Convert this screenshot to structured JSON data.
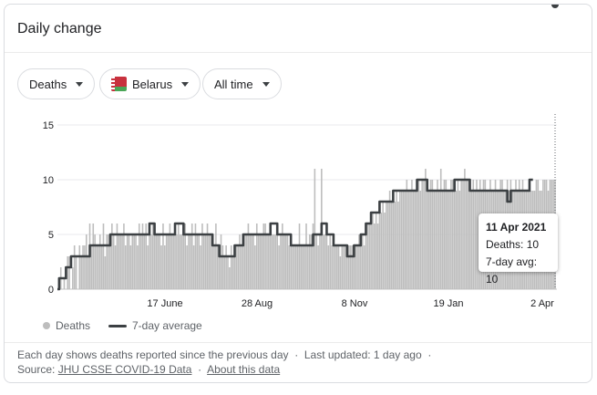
{
  "card": {
    "title": "Daily change"
  },
  "filters": {
    "metric": "Deaths",
    "country": "Belarus",
    "range": "All time",
    "flag_colors": {
      "red": "#c8313e",
      "green": "#4aa657"
    }
  },
  "legend": {
    "bars_label": "Deaths",
    "line_label": "7-day average"
  },
  "tooltip": {
    "date": "11 Apr 2021",
    "deaths_line": "Deaths: 10",
    "avg_line": "7-day avg: 10"
  },
  "footer": {
    "note": "Each day shows deaths reported since the previous day",
    "sep": "·",
    "updated": "Last updated: 1 day ago",
    "source_label": "Source:",
    "source_link": "JHU CSSE COVID-19 Data",
    "about_link": "About this data"
  },
  "colors": {
    "bar": "#bdbdbd",
    "line": "#3c4043",
    "grid": "#e8eaed",
    "text": "#202124",
    "muted": "#5f6368"
  },
  "chart_data": {
    "type": "bar",
    "x_ticks": [
      "17 June",
      "28 Aug",
      "8 Nov",
      "19 Jan",
      "2 Apr"
    ],
    "y_ticks": [
      "0",
      "5",
      "10",
      "15"
    ],
    "ylim": [
      0,
      16
    ],
    "grid": true,
    "legend_position": "bottom-left",
    "series": [
      {
        "name": "Deaths",
        "type": "bar",
        "values": [
          0,
          1,
          2,
          0,
          1,
          0,
          3,
          3,
          0,
          2,
          4,
          3,
          0,
          4,
          3,
          4,
          4,
          5,
          3,
          6,
          4,
          6,
          5,
          4,
          4,
          5,
          4,
          6,
          3,
          5,
          5,
          5,
          6,
          5,
          4,
          6,
          5,
          5,
          5,
          6,
          4,
          5,
          5,
          4,
          5,
          5,
          5,
          4,
          6,
          5,
          6,
          5,
          6,
          4,
          5,
          5,
          6,
          6,
          5,
          5,
          5,
          4,
          6,
          4,
          5,
          5,
          6,
          5,
          5,
          6,
          5,
          6,
          5,
          5,
          5,
          6,
          4,
          5,
          5,
          6,
          4,
          6,
          5,
          5,
          4,
          6,
          5,
          5,
          6,
          5,
          5,
          4,
          4,
          6,
          4,
          4,
          5,
          4,
          3,
          4,
          3,
          2,
          4,
          3,
          3,
          4,
          4,
          5,
          4,
          5,
          5,
          5,
          6,
          5,
          5,
          5,
          4,
          6,
          5,
          5,
          5,
          6,
          6,
          5,
          5,
          5,
          5,
          5,
          5,
          6,
          4,
          5,
          6,
          5,
          5,
          5,
          4,
          5,
          4,
          4,
          4,
          4,
          6,
          4,
          4,
          4,
          6,
          4,
          5,
          5,
          6,
          11,
          5,
          4,
          5,
          11,
          5,
          5,
          6,
          4,
          5,
          4,
          4,
          4,
          4,
          4,
          3,
          4,
          4,
          4,
          3,
          4,
          4,
          4,
          3,
          4,
          4,
          5,
          5,
          5,
          4,
          5,
          6,
          6,
          6,
          7,
          6,
          7,
          6,
          7,
          7,
          8,
          7,
          8,
          8,
          9,
          8,
          9,
          8,
          9,
          8,
          9,
          9,
          9,
          9,
          10,
          9,
          9,
          10,
          9,
          9,
          10,
          10,
          9,
          10,
          10,
          11,
          9,
          9,
          10,
          10,
          9,
          9,
          10,
          9,
          11,
          9,
          10,
          10,
          9,
          9,
          10,
          10,
          9,
          9,
          10,
          9,
          10,
          10,
          11,
          10,
          10,
          10,
          9,
          10,
          9,
          10,
          9,
          10,
          9,
          10,
          10,
          9,
          9,
          10,
          9,
          9,
          10,
          9,
          9,
          10,
          10,
          9,
          9,
          10,
          9,
          10,
          9,
          9,
          10,
          9,
          10,
          9,
          10,
          9,
          9,
          9,
          10,
          9,
          9,
          9,
          10,
          10,
          9,
          9,
          10,
          10,
          10,
          9,
          10,
          10,
          10,
          10
        ]
      },
      {
        "name": "7-day average",
        "type": "line",
        "values": [
          0,
          1,
          1,
          1,
          1,
          2,
          2,
          2,
          3,
          3,
          3,
          3,
          3,
          3,
          3,
          3,
          3,
          3,
          3,
          4,
          4,
          4,
          4,
          4,
          4,
          4,
          4,
          4,
          4,
          4,
          4,
          5,
          5,
          5,
          5,
          5,
          5,
          5,
          5,
          5,
          5,
          5,
          5,
          5,
          5,
          5,
          5,
          5,
          5,
          5,
          5,
          5,
          5,
          5,
          6,
          6,
          6,
          5,
          5,
          5,
          5,
          5,
          5,
          5,
          5,
          5,
          5,
          5,
          5,
          6,
          6,
          6,
          6,
          6,
          5,
          5,
          5,
          5,
          5,
          5,
          5,
          5,
          5,
          5,
          5,
          5,
          5,
          5,
          5,
          5,
          5,
          4,
          4,
          4,
          4,
          3,
          3,
          3,
          3,
          3,
          3,
          3,
          3,
          3,
          4,
          4,
          4,
          4,
          4,
          5,
          5,
          5,
          5,
          5,
          5,
          5,
          5,
          5,
          5,
          5,
          5,
          5,
          5,
          5,
          5,
          6,
          6,
          6,
          6,
          5,
          5,
          5,
          5,
          5,
          5,
          5,
          5,
          4,
          4,
          4,
          4,
          4,
          4,
          4,
          4,
          4,
          4,
          4,
          4,
          4,
          5,
          5,
          5,
          5,
          5,
          6,
          6,
          6,
          5,
          5,
          5,
          5,
          4,
          4,
          4,
          4,
          4,
          4,
          4,
          4,
          3,
          3,
          3,
          3,
          4,
          4,
          4,
          4,
          5,
          5,
          5,
          6,
          6,
          6,
          7,
          7,
          7,
          7,
          7,
          8,
          8,
          8,
          8,
          8,
          8,
          8,
          8,
          9,
          9,
          9,
          9,
          9,
          9,
          9,
          9,
          9,
          9,
          9,
          9,
          9,
          9,
          10,
          10,
          10,
          10,
          10,
          10,
          9,
          9,
          9,
          9,
          9,
          9,
          9,
          9,
          9,
          9,
          9,
          9,
          9,
          9,
          9,
          9,
          10,
          10,
          10,
          10,
          10,
          10,
          10,
          10,
          10,
          9,
          9,
          9,
          9,
          9,
          9,
          9,
          9,
          9,
          9,
          9,
          9,
          9,
          9,
          9,
          9,
          9,
          9,
          9,
          9,
          9,
          9,
          8,
          8,
          9,
          9,
          9,
          9,
          9,
          9,
          9,
          9,
          9,
          9,
          9,
          10,
          10,
          10
        ]
      }
    ]
  }
}
